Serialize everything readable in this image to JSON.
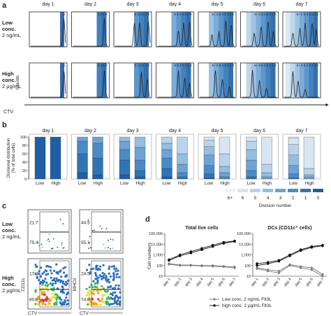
{
  "panels": {
    "a": {
      "letter": "a",
      "days": [
        "day 1",
        "day 2",
        "day 3",
        "day 4",
        "day 5",
        "day 6",
        "day 7"
      ],
      "row_labels": [
        [
          "Low",
          "conc.",
          "2 ng/mL"
        ],
        [
          "High",
          "conc.",
          "2 μg/mL"
        ]
      ],
      "gate_labels": [
        "0",
        "3 2 1 0",
        "5 4 3 2 1 0",
        "6 5 4 3 2 1 0",
        "6+ 6 5 4 3 2 1 0",
        "6+ 6 5 4 3 2 1 0",
        "6+ 6 5 4 3 2 1 0"
      ],
      "ylabel": "Counts",
      "xlabel": "CTV",
      "gate_colors": [
        "#1f5fa6",
        "#2f74b6",
        "#4a8bc6",
        "#6ea3d4",
        "#94bde0",
        "#b9d3ea",
        "#d8e5f3",
        "#eef3fa"
      ],
      "peaks": [
        [
          [
            0.95,
            1.0
          ]
        ],
        [
          [
            0.9,
            0.95
          ]
        ],
        [
          [
            0.7,
            0.9
          ],
          [
            0.55,
            0.85
          ],
          [
            0.95,
            0.95
          ]
        ],
        [
          [
            0.6,
            0.6
          ],
          [
            0.75,
            0.85
          ],
          [
            0.92,
            0.9
          ]
        ],
        [
          [
            0.55,
            0.5
          ],
          [
            0.75,
            0.95
          ],
          [
            0.9,
            0.8
          ],
          [
            0.35,
            0.4
          ]
        ],
        [
          [
            0.35,
            0.5
          ],
          [
            0.55,
            0.75
          ],
          [
            0.75,
            0.95
          ],
          [
            0.9,
            0.55
          ]
        ],
        [
          [
            0.25,
            0.5
          ],
          [
            0.45,
            0.7
          ],
          [
            0.6,
            0.85
          ],
          [
            0.8,
            0.9
          ],
          [
            0.92,
            0.6
          ]
        ]
      ],
      "peaks_high": [
        [
          [
            0.95,
            1.0
          ]
        ],
        [
          [
            0.9,
            0.95
          ]
        ],
        [
          [
            0.75,
            0.9
          ],
          [
            0.92,
            0.7
          ]
        ],
        [
          [
            0.6,
            0.95
          ],
          [
            0.78,
            0.7
          ],
          [
            0.92,
            0.5
          ]
        ],
        [
          [
            0.45,
            0.95
          ],
          [
            0.65,
            0.7
          ],
          [
            0.85,
            0.4
          ]
        ],
        [
          [
            0.3,
            0.95
          ],
          [
            0.5,
            0.6
          ],
          [
            0.7,
            0.35
          ]
        ],
        [
          [
            0.25,
            0.95
          ],
          [
            0.4,
            0.6
          ],
          [
            0.6,
            0.3
          ]
        ]
      ]
    },
    "b": {
      "letter": "b",
      "days": [
        "day 1",
        "day 2",
        "day 3",
        "day 4",
        "day 5",
        "day 6",
        "day 7"
      ],
      "ylabel": "Divisional distribution (% of total cells)",
      "yticks": [
        "0",
        "20",
        "40",
        "60",
        "80",
        "100"
      ],
      "group_labels": [
        "Low",
        "High"
      ],
      "legend_title": "Division number",
      "legend_labels": [
        "6+",
        "6",
        "5",
        "4",
        "3",
        "2",
        "1",
        "0"
      ]
    },
    "c": {
      "letter": "c",
      "row_labels": [
        [
          "Low",
          "conc.",
          "2 ng/mL"
        ],
        [
          "High",
          "conc.",
          "2 μg/mL"
        ]
      ],
      "plots": [
        {
          "top": "21.7",
          "bottom": "75.4"
        },
        {
          "top": "44.9",
          "bottom": "55.1"
        },
        {
          "top": "17.2",
          "bottom": "80.8"
        },
        {
          "top": "24.5",
          "bottom": "74.9"
        }
      ],
      "ylabels": [
        "CD11c",
        "MHCII"
      ],
      "xlabel": "CTV"
    },
    "d": {
      "letter": "d",
      "titles": [
        "Total live cells",
        "DCs (CD11c⁺ cells)"
      ],
      "ylabel": "Cell numbers",
      "yticks": [
        "10",
        "100",
        "1,000",
        "10,000",
        "100,000"
      ],
      "legend": [
        {
          "label": "Low conc. 2 ng/mL Flt3L",
          "marker": "gray-diamond"
        },
        {
          "label": "high conc. 2 μg/mL Flt3L",
          "marker": "black-circle"
        }
      ]
    }
  },
  "chart_data": [
    {
      "type": "bar",
      "title": "",
      "stacked": true,
      "categories": [
        "day 1",
        "day 2",
        "day 3",
        "day 4",
        "day 5",
        "day 6",
        "day 7"
      ],
      "groups": [
        "Low",
        "High"
      ],
      "division_order": [
        "0",
        "1",
        "2",
        "3",
        "4",
        "5",
        "6",
        "6+"
      ],
      "ylabel": "Divisional distribution (% of total cells)",
      "ylim": [
        0,
        100
      ],
      "low": [
        [
          100,
          0,
          0,
          0,
          0,
          0,
          0,
          0
        ],
        [
          15,
          45,
          30,
          10,
          0,
          0,
          0,
          0
        ],
        [
          10,
          35,
          25,
          20,
          10,
          0,
          0,
          0
        ],
        [
          5,
          20,
          25,
          20,
          15,
          15,
          0,
          0
        ],
        [
          2,
          10,
          20,
          25,
          20,
          15,
          8,
          0
        ],
        [
          0,
          5,
          15,
          25,
          25,
          20,
          10,
          0
        ],
        [
          0,
          2,
          10,
          20,
          25,
          25,
          15,
          3
        ]
      ],
      "high": [
        [
          100,
          0,
          0,
          0,
          0,
          0,
          0,
          0
        ],
        [
          10,
          40,
          35,
          15,
          0,
          0,
          0,
          0
        ],
        [
          5,
          15,
          25,
          30,
          25,
          0,
          0,
          0
        ],
        [
          0,
          5,
          10,
          20,
          25,
          40,
          0,
          0
        ],
        [
          0,
          0,
          5,
          10,
          15,
          30,
          40,
          0
        ],
        [
          0,
          0,
          0,
          5,
          10,
          20,
          65,
          0
        ],
        [
          0,
          0,
          0,
          5,
          5,
          15,
          75,
          0
        ]
      ]
    },
    {
      "type": "line",
      "title": "Total live cells",
      "x": [
        "day 1",
        "day 2",
        "day 3",
        "day 4",
        "day 5",
        "day 6",
        "day 7"
      ],
      "ylabel": "Cell numbers",
      "yscale": "log",
      "ylim": [
        10,
        100000
      ],
      "series": [
        {
          "name": "high conc. 2 μg/mL Flt3L",
          "values": [
            300,
            800,
            1500,
            3000,
            6000,
            12000,
            18000
          ]
        },
        {
          "name": "high conc. 2 μg/mL Flt3L",
          "values": [
            350,
            1000,
            2000,
            4000,
            8000,
            15000,
            20000
          ]
        },
        {
          "name": "Low conc. 2 ng/mL Flt3L",
          "values": [
            150,
            110,
            110,
            100,
            100,
            85,
            75
          ]
        },
        {
          "name": "Low conc. 2 ng/mL Flt3L",
          "values": [
            130,
            100,
            100,
            90,
            85,
            75,
            60
          ]
        }
      ]
    },
    {
      "type": "line",
      "title": "DCs (CD11c⁺ cells)",
      "x": [
        "day 1",
        "day 2",
        "day 3",
        "day 4",
        "day 5",
        "day 6",
        "day 7"
      ],
      "ylabel": "Cell numbers",
      "yscale": "log",
      "ylim": [
        10,
        100000
      ],
      "series": [
        {
          "name": "high conc. 2 μg/mL Flt3L",
          "values": [
            150,
            200,
            300,
            1000,
            3000,
            6000,
            8000
          ]
        },
        {
          "name": "high conc. 2 μg/mL Flt3L",
          "values": [
            100,
            150,
            250,
            800,
            2500,
            5000,
            7000
          ]
        },
        {
          "name": "Low conc. 2 ng/mL Flt3L",
          "values": [
            60,
            40,
            30,
            120,
            80,
            60,
            15
          ]
        },
        {
          "name": "Low conc. 2 ng/mL Flt3L",
          "values": [
            50,
            30,
            20,
            100,
            60,
            40,
            10
          ]
        }
      ]
    }
  ]
}
